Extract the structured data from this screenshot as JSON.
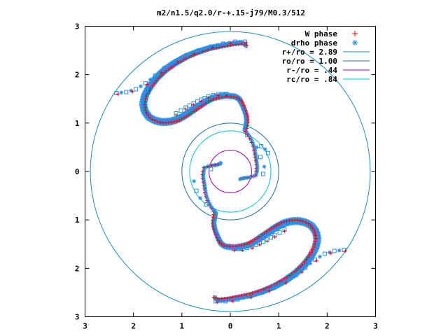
{
  "chart_data": {
    "type": "scatter",
    "title": "m2/n1.5/q2.0/r-+.15-j79/M0.3/512",
    "xlabel": "",
    "ylabel": "",
    "xlim": [
      -3,
      3
    ],
    "ylim": [
      -3,
      3
    ],
    "xticks": [
      "3",
      "2",
      "1",
      "0",
      "1",
      "2",
      "3"
    ],
    "yticks": [
      "3",
      "2",
      "1",
      "0",
      "1",
      "2",
      "3"
    ],
    "grid": false,
    "legend_position": "top-right",
    "colors": {
      "w_phase": "#ff0000",
      "drho_phase": "#2a8ee8",
      "outer_circle": "#1a8fc8",
      "ro_circle": "#1a6fb0",
      "inner_circle": "#9a00c8",
      "corotation_circle": "#00c8c8"
    },
    "legend": [
      {
        "label": "W phase",
        "marker": "+",
        "color": "#ff0000"
      },
      {
        "label": "drho phase",
        "marker": "*",
        "color": "#2a8ee8"
      },
      {
        "label": "r+/ro = 2.89",
        "marker": "line",
        "color": "#1a8fc8"
      },
      {
        "label": "ro/ro = 1.00",
        "marker": "line",
        "color": "#1a6fb0"
      },
      {
        "label": "r-/ro =  .44",
        "marker": "line",
        "color": "#9a00c8"
      },
      {
        "label": "rc/ro =  .84",
        "marker": "line",
        "color": "#00c8c8"
      }
    ],
    "circles": [
      {
        "name": "r+/ro",
        "radius": 2.89
      },
      {
        "name": "ro/ro",
        "radius": 1.0
      },
      {
        "name": "r-/ro",
        "radius": 0.44
      },
      {
        "name": "rc/ro",
        "radius": 0.84
      }
    ],
    "arm_spine": [
      [
        0.3,
        0.85
      ],
      [
        0.32,
        0.95
      ],
      [
        0.34,
        1.05
      ],
      [
        0.33,
        1.15
      ],
      [
        0.3,
        1.25
      ],
      [
        0.26,
        1.35
      ],
      [
        0.22,
        1.44
      ],
      [
        0.18,
        1.5
      ],
      [
        0.1,
        1.55
      ],
      [
        0.0,
        1.56
      ],
      [
        -0.1,
        1.57
      ],
      [
        -0.22,
        1.55
      ],
      [
        -0.36,
        1.52
      ],
      [
        -0.5,
        1.45
      ],
      [
        -0.65,
        1.35
      ],
      [
        -0.8,
        1.25
      ],
      [
        -0.95,
        1.15
      ],
      [
        -1.1,
        1.07
      ],
      [
        -1.25,
        1.03
      ],
      [
        -1.4,
        1.02
      ],
      [
        -1.55,
        1.05
      ],
      [
        -1.68,
        1.12
      ],
      [
        -1.77,
        1.25
      ],
      [
        -1.8,
        1.4
      ],
      [
        -1.76,
        1.58
      ],
      [
        -1.66,
        1.76
      ],
      [
        -1.52,
        1.94
      ],
      [
        -1.35,
        2.1
      ],
      [
        -1.15,
        2.24
      ],
      [
        -0.92,
        2.37
      ],
      [
        -0.68,
        2.47
      ],
      [
        -0.43,
        2.55
      ],
      [
        -0.18,
        2.6
      ],
      [
        0.05,
        2.64
      ],
      [
        0.24,
        2.66
      ],
      [
        0.3,
        2.63
      ],
      [
        0.32,
        2.6
      ]
    ],
    "inner_spine": [
      [
        0.33,
        0.82
      ],
      [
        0.4,
        0.72
      ],
      [
        0.46,
        0.6
      ],
      [
        0.5,
        0.48
      ],
      [
        0.52,
        0.36
      ],
      [
        0.54,
        0.22
      ],
      [
        0.56,
        0.1
      ],
      [
        0.55,
        0.0
      ],
      [
        0.53,
        -0.08
      ],
      [
        0.4,
        -0.12
      ],
      [
        0.26,
        -0.14
      ],
      [
        0.2,
        -0.16
      ]
    ],
    "outer_branch": [
      [
        0.3,
        2.68
      ],
      [
        0.1,
        2.68
      ],
      [
        -0.15,
        2.64
      ],
      [
        -0.4,
        2.58
      ],
      [
        -0.65,
        2.5
      ],
      [
        -0.9,
        2.4
      ],
      [
        -1.12,
        2.28
      ],
      [
        -1.35,
        2.14
      ],
      [
        -1.55,
        1.98
      ],
      [
        -1.75,
        1.82
      ],
      [
        -1.95,
        1.7
      ],
      [
        -2.15,
        1.64
      ],
      [
        -2.35,
        1.62
      ]
    ],
    "inner_branch": [
      [
        -0.08,
        1.6
      ],
      [
        -0.25,
        1.6
      ],
      [
        -0.45,
        1.55
      ],
      [
        -0.68,
        1.45
      ],
      [
        -0.92,
        1.32
      ],
      [
        -1.12,
        1.2
      ]
    ],
    "ring_markers": [
      [
        0.35,
        0.75
      ],
      [
        0.55,
        0.5
      ],
      [
        0.62,
        0.3
      ],
      [
        0.7,
        0.1
      ],
      [
        0.68,
        -0.05
      ],
      [
        -0.2,
        0.18
      ],
      [
        -0.4,
        0.05
      ],
      [
        -0.75,
        -0.2
      ],
      [
        -0.7,
        -0.4
      ],
      [
        -0.62,
        -0.55
      ],
      [
        -0.5,
        -0.68
      ],
      [
        -0.33,
        -0.8
      ],
      [
        0.78,
        0.38
      ],
      [
        0.72,
        0.46
      ],
      [
        0.64,
        0.52
      ]
    ]
  }
}
